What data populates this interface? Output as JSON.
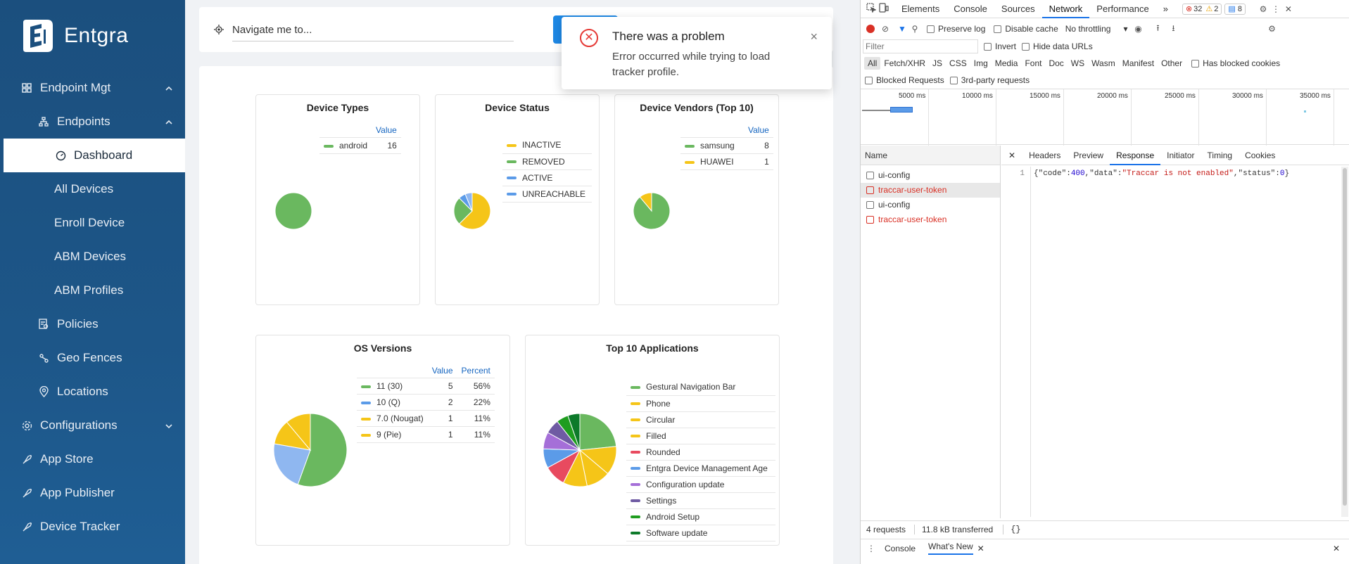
{
  "app": {
    "name": "Entgra"
  },
  "sidebar": {
    "items": [
      {
        "label": "Endpoint Mgt",
        "icon": "grid-icon",
        "arrow": "^"
      },
      {
        "label": "Endpoints",
        "icon": "sitemap-icon",
        "arrow": "^"
      },
      {
        "label": "Dashboard",
        "icon": "dashboard-icon"
      },
      {
        "label": "All Devices"
      },
      {
        "label": "Enroll Device"
      },
      {
        "label": "ABM Devices"
      },
      {
        "label": "ABM Profiles"
      },
      {
        "label": "Policies",
        "icon": "policy-icon"
      },
      {
        "label": "Geo Fences",
        "icon": "geofence-icon"
      },
      {
        "label": "Locations",
        "icon": "location-pin-icon"
      },
      {
        "label": "Configurations",
        "icon": "settings-icon",
        "arrow": "v"
      },
      {
        "label": "App Store",
        "icon": "rocket-icon"
      },
      {
        "label": "App Publisher",
        "icon": "rocket-icon"
      },
      {
        "label": "Device Tracker",
        "icon": "rocket-icon"
      }
    ]
  },
  "search": {
    "value": "Navigate me to..."
  },
  "toast": {
    "title": "There was a problem",
    "message": "Error occurred while trying to load tracker profile.",
    "close": "×"
  },
  "colors": {
    "green": "#6ab85f",
    "yellow": "#f5c518",
    "blue": "#5b9be8",
    "red": "#e84a5f",
    "purple": "#a56fd8",
    "darkpurple": "#6f5ba3",
    "darkgreen": "#1f9d1f",
    "deepgreen": "#0d7a2a",
    "lightblue": "#8fb7f0"
  },
  "cards": {
    "device_types": {
      "title": "Device Types",
      "col": "Value",
      "rows": [
        {
          "name": "android",
          "value": "16"
        }
      ]
    },
    "device_status": {
      "title": "Device Status",
      "rows": [
        {
          "name": "INACTIVE"
        },
        {
          "name": "REMOVED"
        },
        {
          "name": "ACTIVE"
        },
        {
          "name": "UNREACHABLE"
        }
      ]
    },
    "device_vendors": {
      "title": "Device Vendors (Top 10)",
      "col": "Value",
      "rows": [
        {
          "name": "samsung",
          "value": "8"
        },
        {
          "name": "HUAWEI",
          "value": "1"
        }
      ]
    },
    "os_versions": {
      "title": "OS Versions",
      "col_value": "Value",
      "col_percent": "Percent",
      "rows": [
        {
          "name": "11 (30)",
          "value": "5",
          "percent": "56%"
        },
        {
          "name": "10 (Q)",
          "value": "2",
          "percent": "22%"
        },
        {
          "name": "7.0 (Nougat)",
          "value": "1",
          "percent": "11%"
        },
        {
          "name": "9 (Pie)",
          "value": "1",
          "percent": "11%"
        }
      ]
    },
    "top_apps": {
      "title": "Top 10 Applications",
      "rows": [
        {
          "name": "Gestural Navigation Bar"
        },
        {
          "name": "Phone"
        },
        {
          "name": "Circular"
        },
        {
          "name": "Filled"
        },
        {
          "name": "Rounded"
        },
        {
          "name": "Entgra Device Management Age"
        },
        {
          "name": "Configuration update"
        },
        {
          "name": "Settings"
        },
        {
          "name": "Android Setup"
        },
        {
          "name": "Software update"
        }
      ]
    }
  },
  "chart_data": [
    {
      "type": "pie",
      "title": "Device Types",
      "categories": [
        "android"
      ],
      "values": [
        16
      ]
    },
    {
      "type": "pie",
      "title": "Device Status",
      "categories": [
        "INACTIVE",
        "REMOVED",
        "ACTIVE",
        "UNREACHABLE"
      ],
      "values": [
        10,
        4,
        1,
        1
      ]
    },
    {
      "type": "pie",
      "title": "Device Vendors (Top 10)",
      "categories": [
        "samsung",
        "HUAWEI"
      ],
      "values": [
        8,
        1
      ]
    },
    {
      "type": "pie",
      "title": "OS Versions",
      "categories": [
        "11 (30)",
        "10 (Q)",
        "7.0 (Nougat)",
        "9 (Pie)"
      ],
      "values": [
        5,
        2,
        1,
        1
      ]
    },
    {
      "type": "pie",
      "title": "Top 10 Applications",
      "categories": [
        "Gestural Navigation Bar",
        "Phone",
        "Circular",
        "Filled",
        "Rounded",
        "Entgra Device Management Age",
        "Configuration update",
        "Settings",
        "Android Setup",
        "Software update"
      ],
      "values": [
        22,
        12,
        10,
        10,
        9,
        8,
        7,
        6,
        5,
        5
      ]
    }
  ],
  "devtools": {
    "tabs": [
      "Elements",
      "Console",
      "Sources",
      "Network",
      "Performance"
    ],
    "more": "»",
    "errors": "32",
    "warnings": "2",
    "messages": "8",
    "preserve_log": "Preserve log",
    "disable_cache": "Disable cache",
    "throttling": "No throttling",
    "filter_placeholder": "Filter",
    "invert": "Invert",
    "hide_data_urls": "Hide data URLs",
    "types": [
      "All",
      "Fetch/XHR",
      "JS",
      "CSS",
      "Img",
      "Media",
      "Font",
      "Doc",
      "WS",
      "Wasm",
      "Manifest",
      "Other"
    ],
    "has_blocked_cookies": "Has blocked cookies",
    "blocked_requests": "Blocked Requests",
    "third_party": "3rd-party requests",
    "timeline_ticks": [
      "5000 ms",
      "10000 ms",
      "15000 ms",
      "20000 ms",
      "25000 ms",
      "30000 ms",
      "35000 ms"
    ],
    "name_header": "Name",
    "requests": [
      {
        "name": "ui-config",
        "error": false
      },
      {
        "name": "traccar-user-token",
        "error": true
      },
      {
        "name": "ui-config",
        "error": false
      },
      {
        "name": "traccar-user-token",
        "error": true
      }
    ],
    "detail_tabs": [
      "Headers",
      "Preview",
      "Response",
      "Initiator",
      "Timing",
      "Cookies"
    ],
    "line_no": "1",
    "response": {
      "p1": "{\"code\":",
      "n1": "400",
      "p2": ",\"data\":",
      "s1": "\"Traccar is not enabled\"",
      "p3": ",\"status\":",
      "n2": "0",
      "p4": "}"
    },
    "requests_count": "4 requests",
    "transferred": "11.8 kB transferred",
    "format_btn": "{}",
    "drawer_tabs": [
      "Console",
      "What's New"
    ]
  }
}
